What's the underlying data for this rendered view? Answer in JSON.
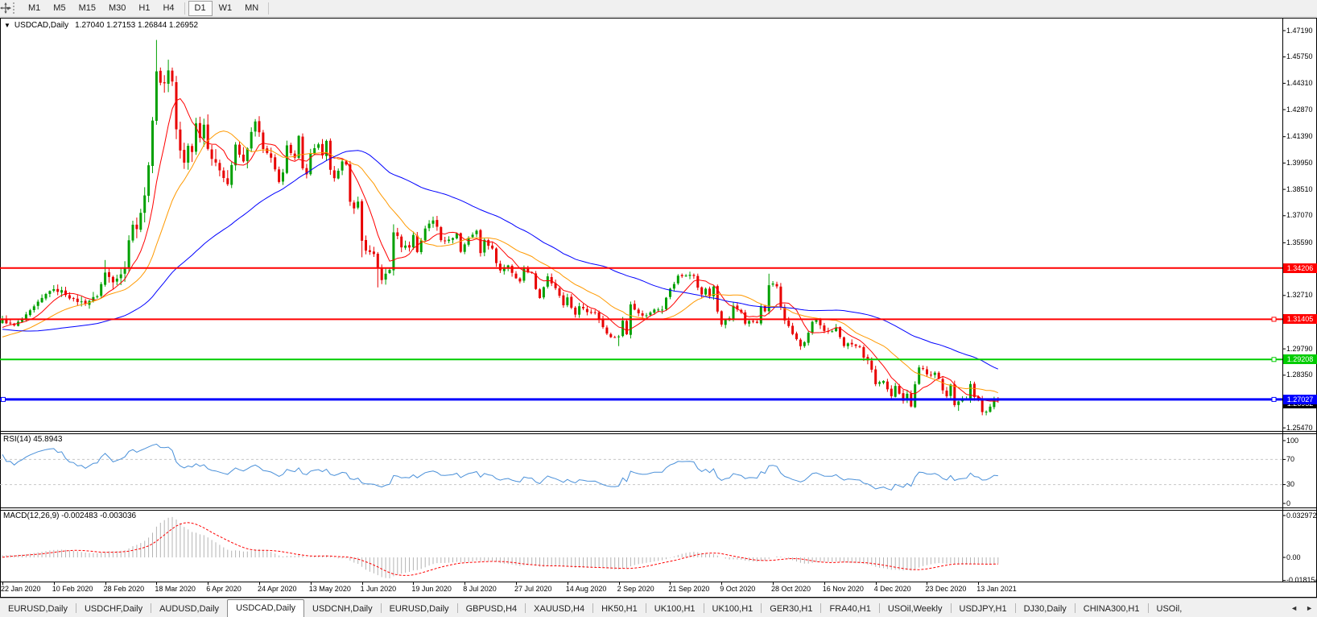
{
  "toolbar": {
    "timeframes": [
      "M1",
      "M5",
      "M15",
      "M30",
      "H1",
      "H4",
      "D1",
      "W1",
      "MN"
    ],
    "active_timeframe": "D1"
  },
  "chart": {
    "collapse_icon": "▼",
    "symbol_title": "USDCAD,Daily",
    "ohlc_text": "1.27040 1.27153 1.26844 1.26952"
  },
  "price_axis": {
    "ticks": [
      "1.47190",
      "1.45750",
      "1.44310",
      "1.42870",
      "1.41390",
      "1.39950",
      "1.38510",
      "1.37070",
      "1.35590",
      "1.34150",
      "1.32710",
      "1.31270",
      "1.29790",
      "1.28350",
      "1.26910",
      "1.25470"
    ],
    "line_labels": [
      {
        "text": "1.34206",
        "color": "#ff0000"
      },
      {
        "text": "1.31405",
        "color": "#ff0000"
      },
      {
        "text": "1.29208",
        "color": "#00cc00"
      },
      {
        "text": "1.27027",
        "color": "#0000ff"
      }
    ],
    "bid_label": {
      "text": "1.26952",
      "bg": "#000000"
    }
  },
  "rsi_panel": {
    "label": "RSI(14) 45.8943",
    "axis_ticks": [
      "100",
      "70",
      "30",
      "0"
    ]
  },
  "macd_panel": {
    "label": "MACD(12,26,9) -0.002483 -0.003036",
    "axis_ticks": [
      "0.032972",
      "0.00",
      "-0.018154"
    ]
  },
  "date_axis": [
    "22 Jan 2020",
    "10 Feb 2020",
    "28 Feb 2020",
    "18 Mar 2020",
    "6 Apr 2020",
    "24 Apr 2020",
    "13 May 2020",
    "1 Jun 2020",
    "19 Jun 2020",
    "8 Jul 2020",
    "27 Jul 2020",
    "14 Aug 2020",
    "2 Sep 2020",
    "21 Sep 2020",
    "9 Oct 2020",
    "28 Oct 2020",
    "16 Nov 2020",
    "4 Dec 2020",
    "23 Dec 2020",
    "13 Jan 2021"
  ],
  "tab_bar": {
    "tabs": [
      "EURUSD,Daily",
      "USDCHF,Daily",
      "AUDUSD,Daily",
      "USDCAD,Daily",
      "USDCNH,Daily",
      "EURUSD,Daily",
      "GBPUSD,H4",
      "XAUUSD,H4",
      "HK50,H1",
      "UK100,H1",
      "UK100,H1",
      "GER30,H1",
      "FRA40,H1",
      "USOil,Weekly",
      "USDJPY,H1",
      "DJ30,Daily",
      "CHINA300,H1",
      "USOil,"
    ],
    "active_index": 3,
    "nav_left": "◄",
    "nav_right": "►"
  },
  "chart_data": {
    "type": "candlestick",
    "symbol": "USDCAD",
    "period": "Daily",
    "bars": 253,
    "bars_per_xtick": 13,
    "x_tick_dates": [
      "22 Jan 2020",
      "10 Feb 2020",
      "28 Feb 2020",
      "18 Mar 2020",
      "6 Apr 2020",
      "24 Apr 2020",
      "13 May 2020",
      "1 Jun 2020",
      "19 Jun 2020",
      "8 Jul 2020",
      "27 Jul 2020",
      "14 Aug 2020",
      "2 Sep 2020",
      "21 Sep 2020",
      "9 Oct 2020",
      "28 Oct 2020",
      "16 Nov 2020",
      "4 Dec 2020",
      "23 Dec 2020",
      "13 Jan 2021"
    ],
    "y_axis": {
      "top_tick": 1.4719,
      "bottom_tick": 1.2547,
      "tick_step": 0.0144
    },
    "up_color": "#00a000",
    "down_color": "#e80000",
    "pre_anchors": [
      [
        -60,
        1.329
      ],
      [
        -45,
        1.317
      ],
      [
        -30,
        1.306
      ],
      [
        -20,
        1.298
      ],
      [
        -12,
        1.301
      ],
      [
        -6,
        1.307
      ],
      [
        -1,
        1.312
      ]
    ],
    "price_anchors": [
      [
        0,
        1.3135
      ],
      [
        3,
        1.3105
      ],
      [
        6,
        1.316
      ],
      [
        9,
        1.323
      ],
      [
        12,
        1.33
      ],
      [
        15,
        1.3295
      ],
      [
        18,
        1.3245
      ],
      [
        21,
        1.323
      ],
      [
        24,
        1.327
      ],
      [
        26,
        1.3395
      ],
      [
        28,
        1.335
      ],
      [
        30,
        1.339
      ],
      [
        31,
        1.342
      ],
      [
        32,
        1.358
      ],
      [
        33,
        1.366
      ],
      [
        34,
        1.363
      ],
      [
        35,
        1.373
      ],
      [
        36,
        1.381
      ],
      [
        37,
        1.399
      ],
      [
        38,
        1.423
      ],
      [
        39,
        1.449
      ],
      [
        40,
        1.444
      ],
      [
        41,
        1.443
      ],
      [
        42,
        1.4505
      ],
      [
        43,
        1.444
      ],
      [
        44,
        1.418
      ],
      [
        45,
        1.406
      ],
      [
        46,
        1.3995
      ],
      [
        47,
        1.409
      ],
      [
        48,
        1.406
      ],
      [
        49,
        1.421
      ],
      [
        50,
        1.414
      ],
      [
        51,
        1.4205
      ],
      [
        52,
        1.408
      ],
      [
        53,
        1.402
      ],
      [
        55,
        1.396
      ],
      [
        57,
        1.388
      ],
      [
        59,
        1.409
      ],
      [
        60,
        1.404
      ],
      [
        61,
        1.4
      ],
      [
        63,
        1.416
      ],
      [
        64,
        1.422
      ],
      [
        65,
        1.416
      ],
      [
        66,
        1.4065
      ],
      [
        68,
        1.403
      ],
      [
        69,
        1.396
      ],
      [
        70,
        1.3885
      ],
      [
        71,
        1.394
      ],
      [
        72,
        1.4085
      ],
      [
        74,
        1.403
      ],
      [
        75,
        1.414
      ],
      [
        76,
        1.397
      ],
      [
        77,
        1.393
      ],
      [
        78,
        1.404
      ],
      [
        80,
        1.41
      ],
      [
        81,
        1.403
      ],
      [
        82,
        1.411
      ],
      [
        83,
        1.395
      ],
      [
        84,
        1.392
      ],
      [
        86,
        1.4
      ],
      [
        87,
        1.398
      ],
      [
        88,
        1.378
      ],
      [
        89,
        1.3755
      ],
      [
        90,
        1.378
      ],
      [
        91,
        1.357
      ],
      [
        92,
        1.352
      ],
      [
        94,
        1.349
      ],
      [
        95,
        1.342
      ],
      [
        96,
        1.336
      ],
      [
        98,
        1.341
      ],
      [
        99,
        1.362
      ],
      [
        100,
        1.359
      ],
      [
        101,
        1.354
      ],
      [
        103,
        1.354
      ],
      [
        104,
        1.36
      ],
      [
        105,
        1.351
      ],
      [
        107,
        1.364
      ],
      [
        109,
        1.368
      ],
      [
        110,
        1.365
      ],
      [
        111,
        1.358
      ],
      [
        113,
        1.357
      ],
      [
        115,
        1.361
      ],
      [
        116,
        1.351
      ],
      [
        118,
        1.359
      ],
      [
        120,
        1.362
      ],
      [
        121,
        1.351
      ],
      [
        122,
        1.357
      ],
      [
        124,
        1.353
      ],
      [
        125,
        1.345
      ],
      [
        126,
        1.341
      ],
      [
        128,
        1.343
      ],
      [
        130,
        1.336
      ],
      [
        131,
        1.334
      ],
      [
        132,
        1.342
      ],
      [
        134,
        1.339
      ],
      [
        135,
        1.33
      ],
      [
        136,
        1.326
      ],
      [
        138,
        1.338
      ],
      [
        140,
        1.331
      ],
      [
        142,
        1.322
      ],
      [
        143,
        1.326
      ],
      [
        145,
        1.316
      ],
      [
        146,
        1.322
      ],
      [
        148,
        1.318
      ],
      [
        150,
        1.318
      ],
      [
        152,
        1.31
      ],
      [
        154,
        1.304
      ],
      [
        156,
        1.305
      ],
      [
        157,
        1.313
      ],
      [
        158,
        1.306
      ],
      [
        159,
        1.323
      ],
      [
        161,
        1.317
      ],
      [
        163,
        1.316
      ],
      [
        165,
        1.32
      ],
      [
        167,
        1.32
      ],
      [
        169,
        1.331
      ],
      [
        170,
        1.333
      ],
      [
        171,
        1.338
      ],
      [
        173,
        1.338
      ],
      [
        175,
        1.338
      ],
      [
        176,
        1.332
      ],
      [
        177,
        1.327
      ],
      [
        178,
        1.331
      ],
      [
        179,
        1.326
      ],
      [
        180,
        1.332
      ],
      [
        181,
        1.319
      ],
      [
        182,
        1.312
      ],
      [
        184,
        1.315
      ],
      [
        185,
        1.321
      ],
      [
        187,
        1.318
      ],
      [
        188,
        1.312
      ],
      [
        190,
        1.313
      ],
      [
        191,
        1.312
      ],
      [
        192,
        1.321
      ],
      [
        193,
        1.318
      ],
      [
        194,
        1.332
      ],
      [
        195,
        1.333
      ],
      [
        196,
        1.332
      ],
      [
        197,
        1.321
      ],
      [
        198,
        1.314
      ],
      [
        200,
        1.306
      ],
      [
        201,
        1.303
      ],
      [
        202,
        1.299
      ],
      [
        203,
        1.302
      ],
      [
        204,
        1.306
      ],
      [
        205,
        1.313
      ],
      [
        206,
        1.314
      ],
      [
        208,
        1.307
      ],
      [
        210,
        1.307
      ],
      [
        211,
        1.31
      ],
      [
        213,
        1.3
      ],
      [
        215,
        1.301
      ],
      [
        217,
        1.299
      ],
      [
        218,
        1.293
      ],
      [
        219,
        1.292
      ],
      [
        220,
        1.286
      ],
      [
        221,
        1.278
      ],
      [
        223,
        1.281
      ],
      [
        225,
        1.272
      ],
      [
        226,
        1.277
      ],
      [
        228,
        1.27
      ],
      [
        229,
        1.274
      ],
      [
        230,
        1.266
      ],
      [
        231,
        1.278
      ],
      [
        232,
        1.288
      ],
      [
        233,
        1.287
      ],
      [
        234,
        1.284
      ],
      [
        236,
        1.285
      ],
      [
        237,
        1.282
      ],
      [
        238,
        1.275
      ],
      [
        239,
        1.272
      ],
      [
        240,
        1.278
      ],
      [
        241,
        1.267
      ],
      [
        242,
        1.269
      ],
      [
        244,
        1.271
      ],
      [
        245,
        1.278
      ],
      [
        246,
        1.272
      ],
      [
        247,
        1.27
      ],
      [
        248,
        1.264
      ],
      [
        249,
        1.263
      ],
      [
        250,
        1.266
      ],
      [
        251,
        1.2704
      ],
      [
        252,
        1.26952
      ]
    ],
    "spikes_high": [
      [
        26,
        1.3465
      ],
      [
        39,
        1.4668
      ],
      [
        42,
        1.456
      ],
      [
        99,
        1.366
      ],
      [
        194,
        1.339
      ],
      [
        232,
        1.289
      ]
    ],
    "spikes_low": [
      [
        91,
        1.348
      ],
      [
        95,
        1.3315
      ],
      [
        156,
        1.2994
      ],
      [
        182,
        1.31
      ],
      [
        230,
        1.2665
      ],
      [
        242,
        1.264
      ],
      [
        249,
        1.2625
      ]
    ],
    "last_candle": {
      "open": 1.2704,
      "high": 1.27153,
      "low": 1.26844,
      "close": 1.26952
    },
    "hlines": [
      {
        "price": 1.34206,
        "color": "#ff0000",
        "width": 2,
        "handle_right": false,
        "handle_left": false
      },
      {
        "price": 1.31405,
        "color": "#ff0000",
        "width": 2,
        "handle_right": true,
        "handle_left": false
      },
      {
        "price": 1.29208,
        "color": "#00cc00",
        "width": 2,
        "handle_right": true,
        "handle_left": false
      },
      {
        "price": 1.27027,
        "color": "#0000ff",
        "width": 3,
        "handle_right": true,
        "handle_left": true
      }
    ],
    "ma": [
      {
        "period": 8,
        "color": "#ff0000"
      },
      {
        "period": 20,
        "color": "#ff9900"
      },
      {
        "period": 55,
        "color": "#0000ff"
      }
    ],
    "rsi": {
      "period": 14,
      "color": "#4a90d9",
      "levels": [
        70,
        30
      ],
      "last_value": 45.8943
    },
    "macd": {
      "fast": 12,
      "slow": 26,
      "signal": 9,
      "hist_color": "#b4b4b4",
      "signal_color": "#ff0000",
      "main_value": -0.002483,
      "signal_value": -0.003036
    }
  }
}
